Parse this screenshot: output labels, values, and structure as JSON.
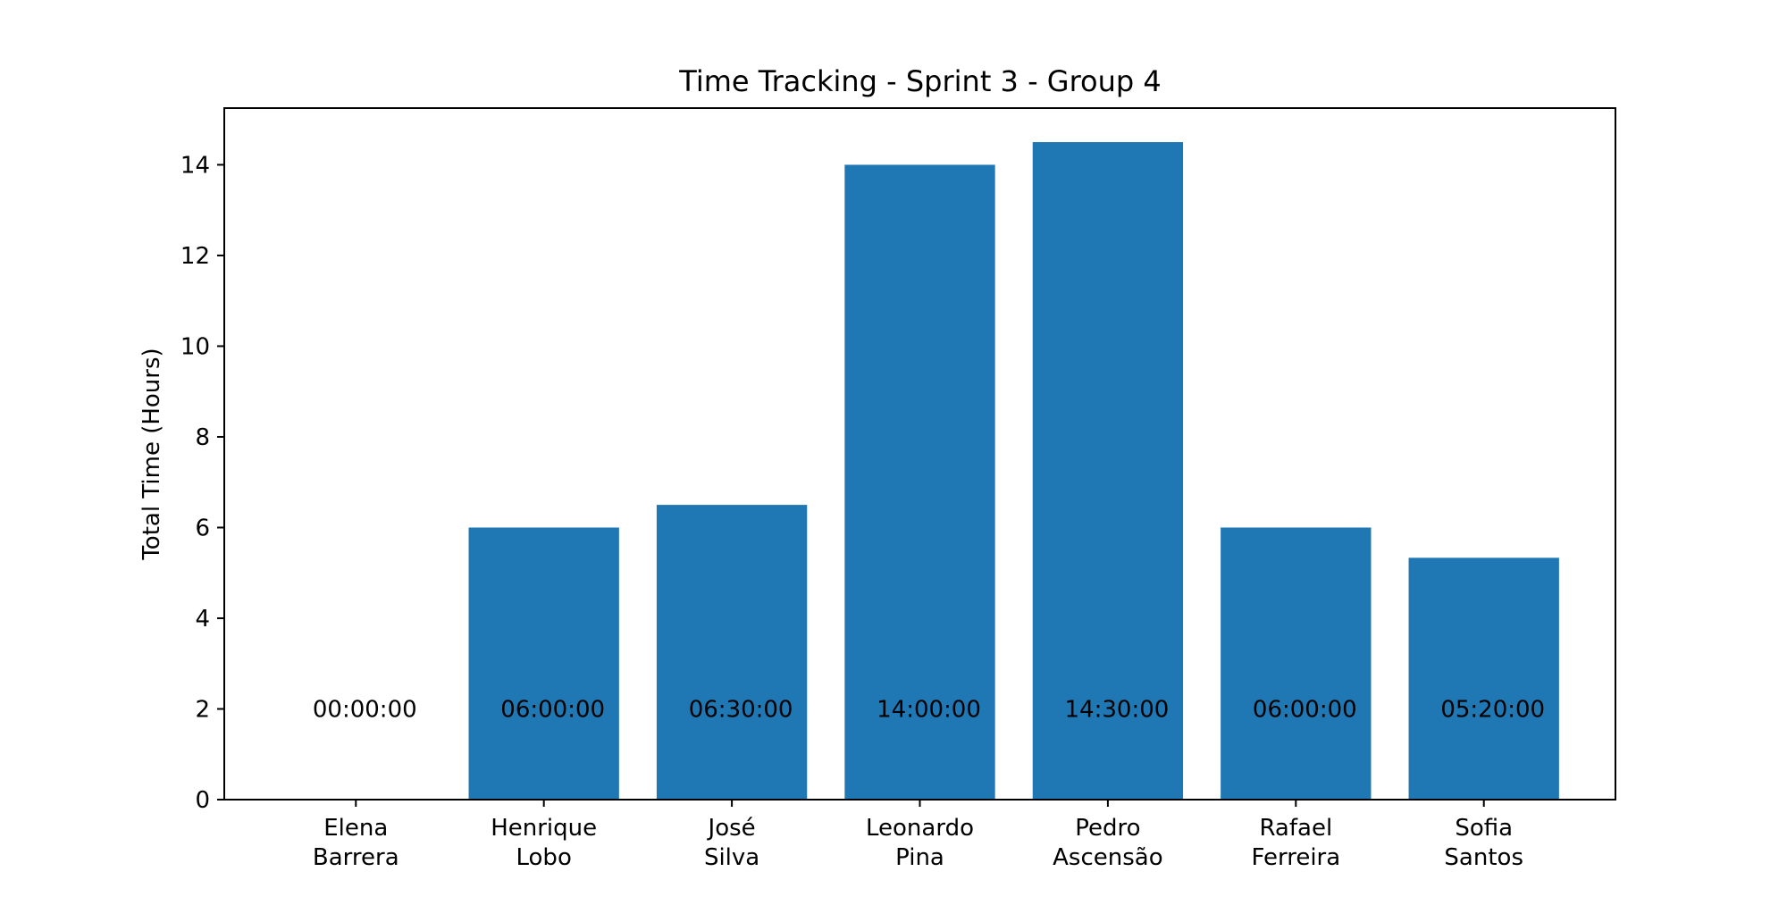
{
  "chart_data": {
    "type": "bar",
    "title": "Time Tracking - Sprint 3 - Group 4",
    "xlabel": "",
    "ylabel": "Total Time (Hours)",
    "ylim": [
      0,
      15.25
    ],
    "yticks": [
      0,
      2,
      4,
      6,
      8,
      10,
      12,
      14
    ],
    "grid": false,
    "legend": "none",
    "bar_color": "#1f77b4",
    "categories": [
      [
        "Elena",
        "Barrera"
      ],
      [
        "Henrique",
        "Lobo"
      ],
      [
        "José",
        "Silva"
      ],
      [
        "Leonardo",
        "Pina"
      ],
      [
        "Pedro",
        "Ascensão"
      ],
      [
        "Rafael",
        "Ferreira"
      ],
      [
        "Sofia",
        "Santos"
      ]
    ],
    "values": [
      0,
      6.0,
      6.5,
      14.0,
      14.5,
      6.0,
      5.333
    ],
    "data_labels": [
      "00:00:00",
      "06:00:00",
      "06:30:00",
      "14:00:00",
      "14:30:00",
      "06:00:00",
      "05:20:00"
    ],
    "data_label_y": 2
  }
}
